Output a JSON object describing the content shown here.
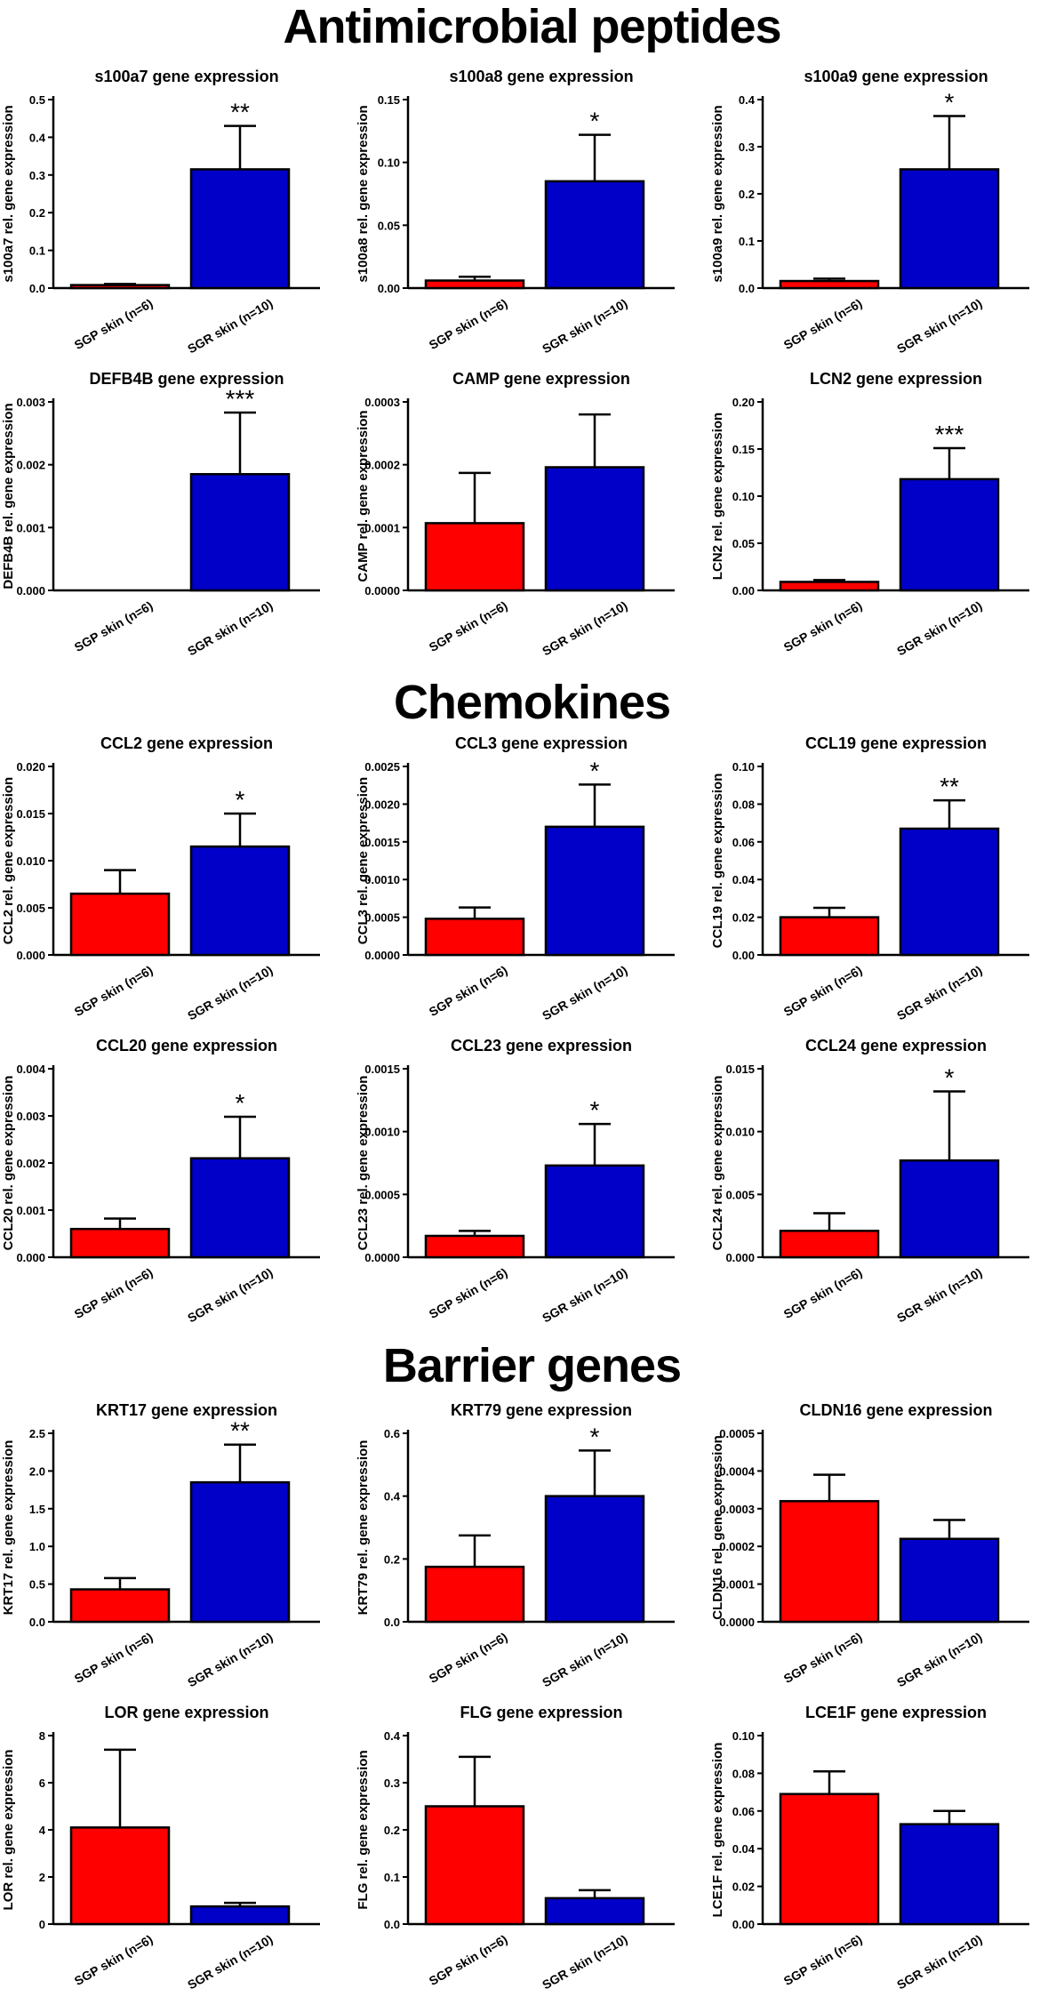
{
  "sections": [
    {
      "title": "Antimicrobial peptides"
    },
    {
      "title": "Chemokines"
    },
    {
      "title": "Barrier genes"
    }
  ],
  "colors": {
    "group1": "#ff0000",
    "group2": "#0000c8",
    "axis": "#000000"
  },
  "chart_data": [
    {
      "type": "bar",
      "title": "s100a7 gene expression",
      "ylabel": "s100a7 rel. gene expression",
      "categories": [
        "SGP skin (n=6)",
        "SGR skin (n=10)"
      ],
      "values": [
        0.008,
        0.315
      ],
      "errors": [
        0.003,
        0.115
      ],
      "ylim": [
        0,
        0.5
      ],
      "yticks": [
        0,
        0.1,
        0.2,
        0.3,
        0.4,
        0.5
      ],
      "tick_labels": [
        "0.0",
        "0.1",
        "0.2",
        "0.3",
        "0.4",
        "0.5"
      ],
      "significance": "**"
    },
    {
      "type": "bar",
      "title": "s100a8 gene expression",
      "ylabel": "s100a8 rel. gene expression",
      "categories": [
        "SGP skin (n=6)",
        "SGR skin (n=10)"
      ],
      "values": [
        0.006,
        0.085
      ],
      "errors": [
        0.003,
        0.037
      ],
      "ylim": [
        0,
        0.15
      ],
      "yticks": [
        0,
        0.05,
        0.1,
        0.15
      ],
      "tick_labels": [
        "0.00",
        "0.05",
        "0.10",
        "0.15"
      ],
      "significance": "*"
    },
    {
      "type": "bar",
      "title": "s100a9 gene expression",
      "ylabel": "s100a9 rel. gene expression",
      "categories": [
        "SGP skin (n=6)",
        "SGR skin (n=10)"
      ],
      "values": [
        0.015,
        0.252
      ],
      "errors": [
        0.005,
        0.113
      ],
      "ylim": [
        0,
        0.4
      ],
      "yticks": [
        0,
        0.1,
        0.2,
        0.3,
        0.4
      ],
      "tick_labels": [
        "0.0",
        "0.1",
        "0.2",
        "0.3",
        "0.4"
      ],
      "significance": "*"
    },
    {
      "type": "bar",
      "title": "DEFB4B gene expression",
      "ylabel": "DEFB4B rel. gene expression",
      "categories": [
        "SGP skin (n=6)",
        "SGR skin (n=10)"
      ],
      "values": [
        0.0,
        0.00185
      ],
      "errors": [
        0.0,
        0.00098
      ],
      "ylim": [
        0,
        0.003
      ],
      "yticks": [
        0,
        0.001,
        0.002,
        0.003
      ],
      "tick_labels": [
        "0.000",
        "0.001",
        "0.002",
        "0.003"
      ],
      "significance": "***"
    },
    {
      "type": "bar",
      "title": "CAMP gene expression",
      "ylabel": "CAMP rel. gene expression",
      "categories": [
        "SGP skin (n=6)",
        "SGR skin (n=10)"
      ],
      "values": [
        0.000107,
        0.000196
      ],
      "errors": [
        8e-05,
        8.4e-05
      ],
      "ylim": [
        0,
        0.0003
      ],
      "yticks": [
        0,
        0.0001,
        0.0002,
        0.0003
      ],
      "tick_labels": [
        "0.0000",
        "0.0001",
        "0.0002",
        "0.0003"
      ],
      "significance": ""
    },
    {
      "type": "bar",
      "title": "LCN2 gene expression",
      "ylabel": "LCN2 rel. gene expression",
      "categories": [
        "SGP skin (n=6)",
        "SGR skin (n=10)"
      ],
      "values": [
        0.009,
        0.118
      ],
      "errors": [
        0.002,
        0.033
      ],
      "ylim": [
        0,
        0.2
      ],
      "yticks": [
        0,
        0.05,
        0.1,
        0.15,
        0.2
      ],
      "tick_labels": [
        "0.00",
        "0.05",
        "0.10",
        "0.15",
        "0.20"
      ],
      "significance": "***"
    },
    {
      "type": "bar",
      "title": "CCL2 gene expression",
      "ylabel": "CCL2 rel. gene expression",
      "categories": [
        "SGP skin (n=6)",
        "SGR skin (n=10)"
      ],
      "values": [
        0.0065,
        0.0115
      ],
      "errors": [
        0.0025,
        0.0035
      ],
      "ylim": [
        0,
        0.02
      ],
      "yticks": [
        0,
        0.005,
        0.01,
        0.015,
        0.02
      ],
      "tick_labels": [
        "0.000",
        "0.005",
        "0.010",
        "0.015",
        "0.020"
      ],
      "significance": "*"
    },
    {
      "type": "bar",
      "title": "CCL3 gene expression",
      "ylabel": "CCL3 rel. gene expression",
      "categories": [
        "SGP skin (n=6)",
        "SGR skin (n=10)"
      ],
      "values": [
        0.00048,
        0.0017
      ],
      "errors": [
        0.00015,
        0.00056
      ],
      "ylim": [
        0,
        0.0025
      ],
      "yticks": [
        0,
        0.0005,
        0.001,
        0.0015,
        0.002,
        0.0025
      ],
      "tick_labels": [
        "0.0000",
        "0.0005",
        "0.0010",
        "0.0015",
        "0.0020",
        "0.0025"
      ],
      "significance": "*"
    },
    {
      "type": "bar",
      "title": "CCL19 gene expression",
      "ylabel": "CCL19 rel. gene expression",
      "categories": [
        "SGP skin (n=6)",
        "SGR skin (n=10)"
      ],
      "values": [
        0.02,
        0.067
      ],
      "errors": [
        0.005,
        0.015
      ],
      "ylim": [
        0,
        0.1
      ],
      "yticks": [
        0,
        0.02,
        0.04,
        0.06,
        0.08,
        0.1
      ],
      "tick_labels": [
        "0.00",
        "0.02",
        "0.04",
        "0.06",
        "0.08",
        "0.10"
      ],
      "significance": "**"
    },
    {
      "type": "bar",
      "title": "CCL20 gene expression",
      "ylabel": "CCL20 rel. gene expression",
      "categories": [
        "SGP skin (n=6)",
        "SGR skin (n=10)"
      ],
      "values": [
        0.0006,
        0.0021
      ],
      "errors": [
        0.00022,
        0.00088
      ],
      "ylim": [
        0,
        0.004
      ],
      "yticks": [
        0,
        0.001,
        0.002,
        0.003,
        0.004
      ],
      "tick_labels": [
        "0.000",
        "0.001",
        "0.002",
        "0.003",
        "0.004"
      ],
      "significance": "*"
    },
    {
      "type": "bar",
      "title": "CCL23 gene expression",
      "ylabel": "CCL23 rel. gene expression",
      "categories": [
        "SGP skin (n=6)",
        "SGR skin (n=10)"
      ],
      "values": [
        0.00017,
        0.00073
      ],
      "errors": [
        4e-05,
        0.00033
      ],
      "ylim": [
        0,
        0.0015
      ],
      "yticks": [
        0,
        0.0005,
        0.001,
        0.0015
      ],
      "tick_labels": [
        "0.0000",
        "0.0005",
        "0.0010",
        "0.0015"
      ],
      "significance": "*"
    },
    {
      "type": "bar",
      "title": "CCL24 gene expression",
      "ylabel": "CCL24 rel. gene expression",
      "categories": [
        "SGP skin (n=6)",
        "SGR skin (n=10)"
      ],
      "values": [
        0.0021,
        0.0077
      ],
      "errors": [
        0.0014,
        0.0055
      ],
      "ylim": [
        0,
        0.015
      ],
      "yticks": [
        0,
        0.005,
        0.01,
        0.015
      ],
      "tick_labels": [
        "0.000",
        "0.005",
        "0.010",
        "0.015"
      ],
      "significance": "*"
    },
    {
      "type": "bar",
      "title": "KRT17 gene expression",
      "ylabel": "KRT17 rel. gene expression",
      "categories": [
        "SGP skin (n=6)",
        "SGR skin (n=10)"
      ],
      "values": [
        0.43,
        1.85
      ],
      "errors": [
        0.15,
        0.5
      ],
      "ylim": [
        0,
        2.5
      ],
      "yticks": [
        0,
        0.5,
        1,
        1.5,
        2,
        2.5
      ],
      "tick_labels": [
        "0.0",
        "0.5",
        "1.0",
        "1.5",
        "2.0",
        "2.5"
      ],
      "significance": "**"
    },
    {
      "type": "bar",
      "title": "KRT79 gene expression",
      "ylabel": "KRT79 rel. gene expression",
      "categories": [
        "SGP skin (n=6)",
        "SGR skin (n=10)"
      ],
      "values": [
        0.175,
        0.4
      ],
      "errors": [
        0.1,
        0.145
      ],
      "ylim": [
        0,
        0.6
      ],
      "yticks": [
        0,
        0.2,
        0.4,
        0.6
      ],
      "tick_labels": [
        "0.0",
        "0.2",
        "0.4",
        "0.6"
      ],
      "significance": "*"
    },
    {
      "type": "bar",
      "title": "CLDN16 gene expression",
      "ylabel": "CLDN16 rel. gene expression",
      "categories": [
        "SGP skin (n=6)",
        "SGR skin (n=10)"
      ],
      "values": [
        0.00032,
        0.00022
      ],
      "errors": [
        7e-05,
        5e-05
      ],
      "ylim": [
        0,
        0.0005
      ],
      "yticks": [
        0,
        0.0001,
        0.0002,
        0.0003,
        0.0004,
        0.0005
      ],
      "tick_labels": [
        "0.0000",
        "0.0001",
        "0.0002",
        "0.0003",
        "0.0004",
        "0.0005"
      ],
      "significance": ""
    },
    {
      "type": "bar",
      "title": "LOR gene expression",
      "ylabel": "LOR rel. gene expression",
      "categories": [
        "SGP skin (n=6)",
        "SGR skin (n=10)"
      ],
      "values": [
        4.1,
        0.75
      ],
      "errors": [
        3.3,
        0.15
      ],
      "ylim": [
        0,
        8
      ],
      "yticks": [
        0,
        2,
        4,
        6,
        8
      ],
      "tick_labels": [
        "0",
        "2",
        "4",
        "6",
        "8"
      ],
      "significance": ""
    },
    {
      "type": "bar",
      "title": "FLG gene expression",
      "ylabel": "FLG rel. gene expression",
      "categories": [
        "SGP skin (n=6)",
        "SGR skin (n=10)"
      ],
      "values": [
        0.25,
        0.055
      ],
      "errors": [
        0.105,
        0.017
      ],
      "ylim": [
        0,
        0.4
      ],
      "yticks": [
        0,
        0.1,
        0.2,
        0.3,
        0.4
      ],
      "tick_labels": [
        "0.0",
        "0.1",
        "0.2",
        "0.3",
        "0.4"
      ],
      "significance": ""
    },
    {
      "type": "bar",
      "title": "LCE1F gene expression",
      "ylabel": "LCE1F rel. gene expression",
      "categories": [
        "SGP skin (n=6)",
        "SGR skin (n=10)"
      ],
      "values": [
        0.069,
        0.053
      ],
      "errors": [
        0.012,
        0.007
      ],
      "ylim": [
        0,
        0.1
      ],
      "yticks": [
        0,
        0.02,
        0.04,
        0.06,
        0.08,
        0.1
      ],
      "tick_labels": [
        "0.00",
        "0.02",
        "0.04",
        "0.06",
        "0.08",
        "0.10"
      ],
      "significance": ""
    }
  ]
}
